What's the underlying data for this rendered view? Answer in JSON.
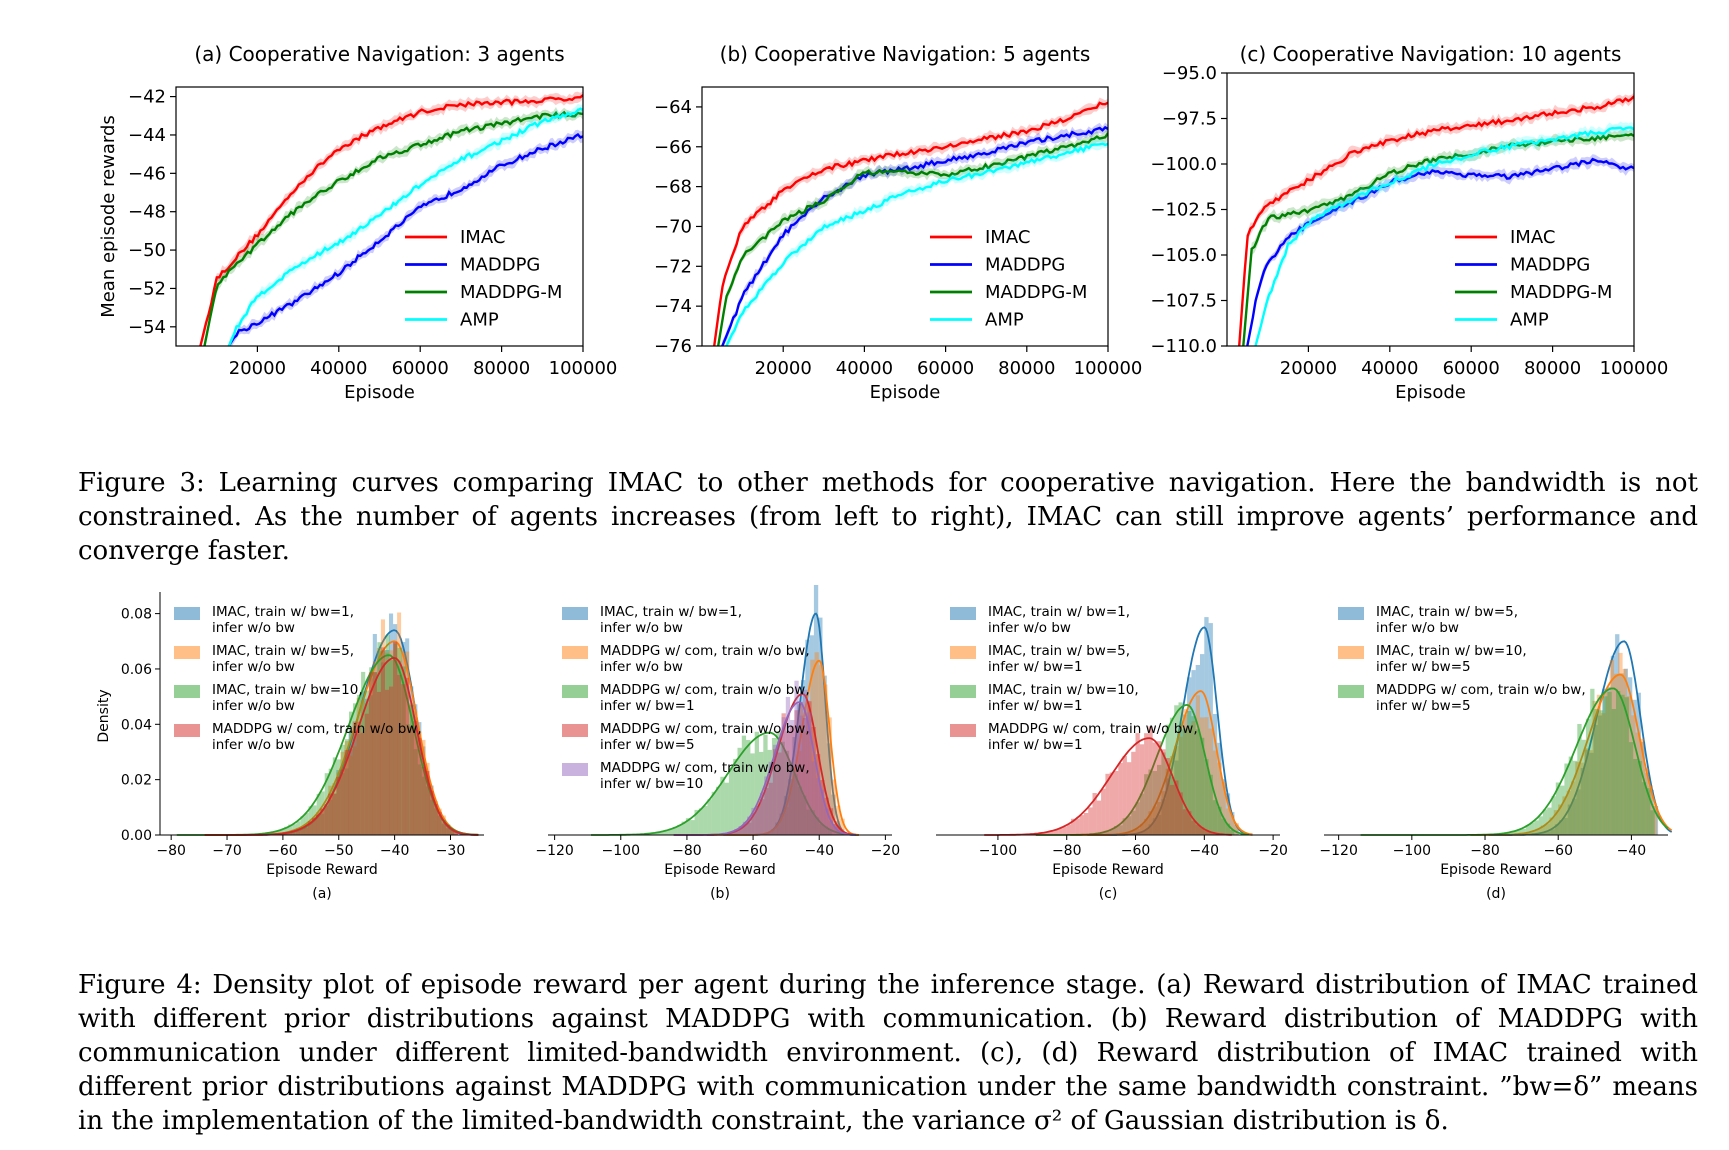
{
  "figure3": {
    "caption": "Figure 3: Learning curves comparing IMAC to other methods for cooperative navigation. Here the bandwidth is not constrained. As the number of agents increases (from left to right), IMAC can still improve agents’ performance and converge faster.",
    "colors": {
      "IMAC": "#ff0000",
      "MADDPG": "#0000ff",
      "MADDPG-M": "#008000",
      "AMP": "#00ffff"
    }
  },
  "figure4": {
    "caption": "Figure 4: Density plot of episode reward per agent during the inference stage. (a) Reward distribution of IMAC trained with different prior distributions against MADDPG with communication. (b) Reward distribution of MADDPG with communication under different limited-bandwidth environment. (c), (d) Reward distribution of IMAC trained with different prior distributions against MADDPG with communication under the same bandwidth constraint. ”bw=δ” means in the implementation of the limited-bandwidth constraint, the variance σ² of Gaussian distribution is δ.",
    "colors": {
      "blue": "#1f77b4",
      "orange": "#ff7f0e",
      "green": "#2ca02c",
      "red": "#d62728",
      "purple": "#9467bd"
    }
  },
  "chart_data": [
    {
      "type": "line",
      "panel": "fig3a",
      "title": "(a) Cooperative Navigation: 3 agents",
      "xlabel": "Episode",
      "ylabel": "Mean episode rewards",
      "xlim": [
        0,
        100000
      ],
      "ylim": [
        -55,
        -41.5
      ],
      "xticks": [
        20000,
        40000,
        60000,
        80000,
        100000
      ],
      "yticks": [
        -54,
        -52,
        -50,
        -48,
        -46,
        -44,
        -42
      ],
      "ytick_labels": [
        "−54",
        "−52",
        "−50",
        "−48",
        "−46",
        "−44",
        "−42"
      ],
      "legend": "center-right",
      "series": [
        {
          "name": "IMAC",
          "color": "#ff0000",
          "x": [
            6000,
            10000,
            20000,
            30000,
            40000,
            50000,
            60000,
            70000,
            80000,
            90000,
            100000
          ],
          "y": [
            -55,
            -51.5,
            -49.2,
            -46.6,
            -44.7,
            -43.6,
            -42.8,
            -42.4,
            -42.3,
            -42.2,
            -42.0
          ]
        },
        {
          "name": "MADDPG",
          "color": "#0000ff",
          "x": [
            13000,
            15000,
            20000,
            30000,
            40000,
            50000,
            60000,
            70000,
            80000,
            90000,
            100000
          ],
          "y": [
            -55,
            -54.3,
            -53.8,
            -52.6,
            -51.2,
            -49.5,
            -47.8,
            -46.8,
            -45.6,
            -44.7,
            -44.0
          ]
        },
        {
          "name": "MADDPG-M",
          "color": "#008000",
          "x": [
            7000,
            10000,
            20000,
            30000,
            40000,
            50000,
            60000,
            70000,
            80000,
            90000,
            100000
          ],
          "y": [
            -55,
            -51.8,
            -49.7,
            -47.8,
            -46.4,
            -45.2,
            -44.5,
            -43.8,
            -43.4,
            -43.0,
            -42.9
          ]
        },
        {
          "name": "AMP",
          "color": "#00ffff",
          "x": [
            13000,
            15000,
            20000,
            30000,
            40000,
            50000,
            60000,
            70000,
            80000,
            90000,
            100000
          ],
          "y": [
            -55,
            -54.0,
            -52.4,
            -50.8,
            -49.6,
            -48.2,
            -46.6,
            -45.3,
            -44.3,
            -43.3,
            -42.7
          ]
        }
      ]
    },
    {
      "type": "line",
      "panel": "fig3b",
      "title": "(b) Cooperative Navigation: 5 agents",
      "xlabel": "Episode",
      "ylabel": "",
      "xlim": [
        0,
        100000
      ],
      "ylim": [
        -76,
        -63
      ],
      "xticks": [
        20000,
        40000,
        60000,
        80000,
        100000
      ],
      "yticks": [
        -76,
        -74,
        -72,
        -70,
        -68,
        -66,
        -64
      ],
      "ytick_labels": [
        "−76",
        "−74",
        "−72",
        "−70",
        "−68",
        "−66",
        "−64"
      ],
      "legend": "center-right",
      "series": [
        {
          "name": "IMAC",
          "color": "#ff0000",
          "x": [
            3000,
            5000,
            10000,
            20000,
            30000,
            40000,
            50000,
            60000,
            70000,
            80000,
            90000,
            100000
          ],
          "y": [
            -76,
            -73.0,
            -70.0,
            -68.2,
            -67.1,
            -66.7,
            -66.3,
            -66.0,
            -65.6,
            -65.2,
            -64.6,
            -63.7
          ]
        },
        {
          "name": "MADDPG",
          "color": "#0000ff",
          "x": [
            5000,
            8000,
            10000,
            20000,
            30000,
            40000,
            50000,
            60000,
            70000,
            80000,
            90000,
            100000
          ],
          "y": [
            -76,
            -74.5,
            -73.5,
            -70.4,
            -68.6,
            -67.4,
            -67.1,
            -66.7,
            -66.3,
            -65.8,
            -65.4,
            -65.1
          ]
        },
        {
          "name": "MADDPG-M",
          "color": "#008000",
          "x": [
            4000,
            6000,
            10000,
            20000,
            30000,
            40000,
            50000,
            60000,
            70000,
            80000,
            90000,
            100000
          ],
          "y": [
            -76,
            -73.5,
            -71.5,
            -69.7,
            -68.7,
            -67.3,
            -67.3,
            -67.4,
            -67.0,
            -66.5,
            -66.0,
            -65.4
          ]
        },
        {
          "name": "AMP",
          "color": "#00ffff",
          "x": [
            6000,
            10000,
            20000,
            30000,
            40000,
            50000,
            60000,
            70000,
            80000,
            90000,
            100000
          ],
          "y": [
            -76,
            -74.3,
            -71.8,
            -70.0,
            -69.2,
            -68.3,
            -67.7,
            -67.3,
            -66.8,
            -66.3,
            -65.8
          ]
        }
      ]
    },
    {
      "type": "line",
      "panel": "fig3c",
      "title": "(c) Cooperative Navigation: 10 agents",
      "xlabel": "Episode",
      "ylabel": "",
      "xlim": [
        0,
        100000
      ],
      "ylim": [
        -110,
        -95
      ],
      "xticks": [
        20000,
        40000,
        60000,
        80000,
        100000
      ],
      "yticks": [
        -110,
        -107.5,
        -105,
        -102.5,
        -100,
        -97.5,
        -95
      ],
      "ytick_labels": [
        "−110.0",
        "−107.5",
        "−105.0",
        "−102.5",
        "−100.0",
        "−97.5",
        "−95.0"
      ],
      "legend": "center-right",
      "series": [
        {
          "name": "IMAC",
          "color": "#ff0000",
          "x": [
            3000,
            5000,
            8000,
            10000,
            20000,
            30000,
            40000,
            50000,
            60000,
            70000,
            80000,
            90000,
            100000
          ],
          "y": [
            -110,
            -104.0,
            -102.7,
            -102.2,
            -100.9,
            -99.5,
            -98.7,
            -98.2,
            -97.9,
            -97.6,
            -97.2,
            -96.9,
            -96.4
          ]
        },
        {
          "name": "MADDPG",
          "color": "#0000ff",
          "x": [
            5000,
            8000,
            10000,
            15000,
            20000,
            30000,
            40000,
            50000,
            60000,
            70000,
            80000,
            90000,
            100000
          ],
          "y": [
            -110,
            -106.5,
            -105.5,
            -104.0,
            -103.3,
            -102.2,
            -101.0,
            -100.4,
            -100.6,
            -100.7,
            -100.3,
            -99.8,
            -100.3
          ]
        },
        {
          "name": "MADDPG-M",
          "color": "#008000",
          "x": [
            4000,
            6000,
            10000,
            20000,
            30000,
            40000,
            50000,
            60000,
            70000,
            80000,
            90000,
            100000
          ],
          "y": [
            -110,
            -104.8,
            -103.0,
            -102.6,
            -101.8,
            -100.5,
            -99.8,
            -99.4,
            -99.0,
            -98.8,
            -98.6,
            -98.4
          ]
        },
        {
          "name": "AMP",
          "color": "#00ffff",
          "x": [
            7000,
            10000,
            15000,
            20000,
            30000,
            40000,
            50000,
            60000,
            70000,
            80000,
            90000,
            100000
          ],
          "y": [
            -110,
            -107.5,
            -104.5,
            -103.2,
            -102.0,
            -101.0,
            -100.1,
            -99.5,
            -99.0,
            -98.6,
            -98.3,
            -98.0
          ]
        }
      ]
    },
    {
      "type": "area",
      "panel": "fig4a",
      "title": "",
      "xlabel": "Episode Reward",
      "ylabel": "Density",
      "sublabel": "(a)",
      "xlim": [
        -82,
        -24
      ],
      "ylim": [
        0,
        0.086
      ],
      "xticks": [
        -80,
        -70,
        -60,
        -50,
        -40,
        -30
      ],
      "xtick_labels": [
        "−80",
        "−70",
        "−60",
        "−50",
        "−40",
        "−30"
      ],
      "yticks": [
        0,
        0.02,
        0.04,
        0.06,
        0.08
      ],
      "ytick_labels": [
        "0.00",
        "0.02",
        "0.04",
        "0.06",
        "0.08"
      ],
      "legend": "top-left",
      "series": [
        {
          "name": "IMAC, train w/ bw=1, infer w/o bw",
          "color": "blue",
          "mu": -40,
          "sigma": 5.0,
          "peak": 0.074,
          "left": -70,
          "right": -29
        },
        {
          "name": "IMAC, train w/ bw=5, infer w/o bw",
          "color": "orange",
          "mu": -40,
          "sigma": 5.3,
          "peak": 0.07,
          "left": -70,
          "right": -29
        },
        {
          "name": "IMAC, train w/ bw=10, infer w/o bw",
          "color": "green",
          "mu": -41,
          "sigma": 5.8,
          "peak": 0.065,
          "left": -75,
          "right": -29
        },
        {
          "name": "MADDPG w/ com, train w/o bw, infer w/o bw",
          "color": "red",
          "mu": -40,
          "sigma": 5.2,
          "peak": 0.064,
          "left": -70,
          "right": -29
        }
      ]
    },
    {
      "type": "area",
      "panel": "fig4b",
      "title": "",
      "xlabel": "Episode Reward",
      "ylabel": "",
      "sublabel": "(b)",
      "xlim": [
        -122,
        -18
      ],
      "ylim": [
        0,
        0.086
      ],
      "xticks": [
        -120,
        -100,
        -80,
        -60,
        -40,
        -20
      ],
      "xtick_labels": [
        "−120",
        "−100",
        "−80",
        "−60",
        "−40",
        "−20"
      ],
      "legend": "top-left",
      "series": [
        {
          "name": "IMAC, train w/ bw=1, infer w/o bw",
          "color": "blue",
          "mu": -41,
          "sigma": 3.8,
          "peak": 0.08,
          "left": -65,
          "right": -32
        },
        {
          "name": "MADDPG w/ com, train w/o bw, infer w/o bw",
          "color": "orange",
          "mu": -40,
          "sigma": 4.2,
          "peak": 0.063,
          "left": -70,
          "right": -32
        },
        {
          "name": "MADDPG w/ com, train w/o bw, infer w/ bw=1",
          "color": "green",
          "mu": -55,
          "sigma": 10.0,
          "peak": 0.037,
          "left": -105,
          "right": -36
        },
        {
          "name": "MADDPG w/ com, train w/o bw, infer w/ bw=5",
          "color": "red",
          "mu": -45,
          "sigma": 6.0,
          "peak": 0.051,
          "left": -80,
          "right": -33
        },
        {
          "name": "MADDPG w/ com, train w/o bw, infer w/ bw=10",
          "color": "purple",
          "mu": -46,
          "sigma": 6.0,
          "peak": 0.048,
          "left": -80,
          "right": -33
        }
      ]
    },
    {
      "type": "area",
      "panel": "fig4c",
      "title": "",
      "xlabel": "Episode Reward",
      "ylabel": "",
      "sublabel": "(c)",
      "xlim": [
        -118,
        -18
      ],
      "ylim": [
        0,
        0.086
      ],
      "xticks": [
        -100,
        -80,
        -60,
        -40,
        -20
      ],
      "xtick_labels": [
        "−100",
        "−80",
        "−60",
        "−40",
        "−20"
      ],
      "legend": "top-left",
      "series": [
        {
          "name": "IMAC, train w/ bw=1, infer w/o bw",
          "color": "blue",
          "mu": -40,
          "sigma": 5.0,
          "peak": 0.075,
          "left": -70,
          "right": -30
        },
        {
          "name": "IMAC, train w/ bw=5, infer w/ bw=1",
          "color": "orange",
          "mu": -41,
          "sigma": 6.0,
          "peak": 0.052,
          "left": -75,
          "right": -30
        },
        {
          "name": "IMAC, train w/ bw=10, infer w/ bw=1",
          "color": "green",
          "mu": -45,
          "sigma": 7.0,
          "peak": 0.047,
          "left": -85,
          "right": -31
        },
        {
          "name": "MADDPG w/ com, train w/o bw, infer w/ bw=1",
          "color": "red",
          "mu": -56,
          "sigma": 9.0,
          "peak": 0.035,
          "left": -100,
          "right": -36
        }
      ]
    },
    {
      "type": "area",
      "panel": "fig4d",
      "title": "",
      "xlabel": "Episode Reward",
      "ylabel": "",
      "sublabel": "(d)",
      "xlim": [
        -124,
        -30
      ],
      "ylim": [
        0,
        0.086
      ],
      "xticks": [
        -120,
        -100,
        -80,
        -60,
        -40
      ],
      "xtick_labels": [
        "−120",
        "−100",
        "−80",
        "−60",
        "−40"
      ],
      "legend": "top-left",
      "series": [
        {
          "name": "IMAC, train w/ bw=5, infer w/o bw",
          "color": "blue",
          "mu": -42,
          "sigma": 6.0,
          "peak": 0.07,
          "left": -75,
          "right": -33
        },
        {
          "name": "IMAC, train w/ bw=10, infer w/ bw=5",
          "color": "orange",
          "mu": -43,
          "sigma": 7.0,
          "peak": 0.058,
          "left": -80,
          "right": -33
        },
        {
          "name": "MADDPG w/ com, train w/o bw, infer w/ bw=5",
          "color": "green",
          "mu": -45,
          "sigma": 8.0,
          "peak": 0.053,
          "left": -110,
          "right": -34
        }
      ]
    }
  ]
}
